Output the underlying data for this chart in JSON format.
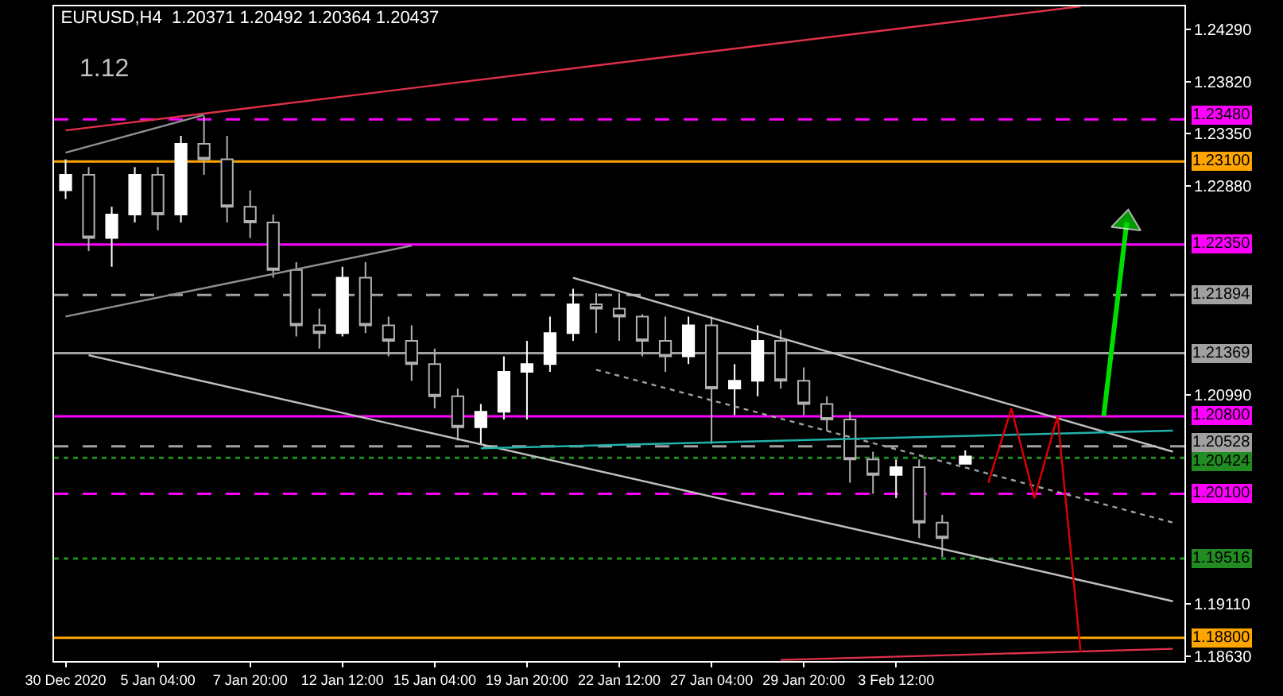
{
  "chart_data": {
    "type": "candlestick",
    "title": "EURUSD,H4  1.20371 1.20492 1.20364 1.20437",
    "annotations": [
      "1.12"
    ],
    "categories": [
      "30 Dec 2020",
      null,
      null,
      null,
      "5 Jan 04:00",
      null,
      null,
      null,
      "7 Jan 20:00",
      null,
      null,
      null,
      "12 Jan 12:00",
      null,
      null,
      null,
      "15 Jan 04:00",
      null,
      null,
      null,
      "19 Jan 20:00",
      null,
      null,
      null,
      "22 Jan 12:00",
      null,
      null,
      null,
      "27 Jan 04:00",
      null,
      null,
      null,
      "29 Jan 20:00",
      null,
      null,
      null,
      "3 Feb 12:00",
      null,
      null,
      null,
      null,
      null,
      null,
      null,
      null,
      null,
      null,
      null,
      null
    ],
    "ohlc": [
      [
        1.2284,
        1.2312,
        1.2276,
        1.2298
      ],
      [
        1.2298,
        1.2305,
        1.2229,
        1.2241
      ],
      [
        1.2241,
        1.2269,
        1.2215,
        1.2262
      ],
      [
        1.2262,
        1.2305,
        1.2255,
        1.2298
      ],
      [
        1.2298,
        1.2305,
        1.2248,
        1.2262
      ],
      [
        1.2262,
        1.2333,
        1.2255,
        1.2326
      ],
      [
        1.2326,
        1.2351,
        1.2298,
        1.2312
      ],
      [
        1.2312,
        1.2333,
        1.2255,
        1.2269
      ],
      [
        1.2269,
        1.2284,
        1.2241,
        1.2255
      ],
      [
        1.2255,
        1.2262,
        1.2205,
        1.2212
      ],
      [
        1.2212,
        1.2219,
        1.2152,
        1.2162
      ],
      [
        1.2162,
        1.2177,
        1.2141,
        1.2155
      ],
      [
        1.2155,
        1.2215,
        1.2152,
        1.2205
      ],
      [
        1.2205,
        1.2219,
        1.2155,
        1.2162
      ],
      [
        1.2162,
        1.217,
        1.2134,
        1.2148
      ],
      [
        1.2148,
        1.2162,
        1.2112,
        1.2127
      ],
      [
        1.2127,
        1.2141,
        1.2087,
        1.2098
      ],
      [
        1.2098,
        1.2105,
        1.2058,
        1.207
      ],
      [
        1.207,
        1.2091,
        1.2055,
        1.2084
      ],
      [
        1.2084,
        1.2134,
        1.2077,
        1.212
      ],
      [
        1.212,
        1.2148,
        1.2077,
        1.2127
      ],
      [
        1.2127,
        1.217,
        1.212,
        1.2155
      ],
      [
        1.2155,
        1.2195,
        1.2148,
        1.2181
      ],
      [
        1.2181,
        1.2191,
        1.2155,
        1.2177
      ],
      [
        1.2177,
        1.2191,
        1.2148,
        1.217
      ],
      [
        1.217,
        1.2172,
        1.2134,
        1.2148
      ],
      [
        1.2148,
        1.217,
        1.212,
        1.2134
      ],
      [
        1.2134,
        1.217,
        1.2127,
        1.2162
      ],
      [
        1.2162,
        1.217,
        1.2055,
        1.2105
      ],
      [
        1.2105,
        1.2127,
        1.2081,
        1.2112
      ],
      [
        1.2112,
        1.2162,
        1.2098,
        1.2148
      ],
      [
        1.2148,
        1.2158,
        1.2105,
        1.2112
      ],
      [
        1.2112,
        1.2124,
        1.2081,
        1.2091
      ],
      [
        1.2091,
        1.2098,
        1.2067,
        1.2077
      ],
      [
        1.2077,
        1.2084,
        1.202,
        1.2041
      ],
      [
        1.2041,
        1.2048,
        1.201,
        1.2027
      ],
      [
        1.2027,
        1.2041,
        1.2006,
        1.2034
      ],
      [
        1.2034,
        1.2041,
        1.197,
        1.1984
      ],
      [
        1.1984,
        1.1991,
        1.1953,
        1.197
      ],
      [
        1.20371,
        1.20492,
        1.20364,
        1.20437
      ],
      null,
      null,
      null,
      null,
      null,
      null,
      null,
      null,
      null
    ],
    "series": [
      {
        "type": "line",
        "color": "#e0304a",
        "values": [
          1.2338,
          null,
          null,
          null,
          null,
          null,
          null,
          null,
          null,
          null,
          null,
          null,
          null,
          null,
          null,
          null,
          null,
          null,
          null,
          null,
          null,
          null,
          null,
          null,
          null,
          null,
          null,
          null,
          null,
          null,
          null,
          null,
          null,
          null,
          null,
          null,
          null,
          null,
          null,
          null,
          null,
          null,
          null,
          null,
          1.245,
          null,
          null,
          null,
          null
        ]
      },
      {
        "type": "line",
        "color": "#e0304a",
        "values": [
          null,
          null,
          null,
          null,
          null,
          null,
          null,
          null,
          null,
          null,
          null,
          null,
          null,
          null,
          null,
          null,
          null,
          null,
          null,
          null,
          null,
          null,
          null,
          null,
          null,
          null,
          null,
          null,
          null,
          null,
          null,
          1.186,
          null,
          null,
          null,
          null,
          null,
          null,
          null,
          null,
          null,
          null,
          null,
          null,
          null,
          null,
          null,
          null,
          1.187
        ]
      },
      {
        "type": "line",
        "color": "#909090",
        "values": [
          1.217,
          null,
          null,
          null,
          null,
          null,
          null,
          null,
          null,
          null,
          null,
          null,
          null,
          null,
          null,
          1.2234,
          null,
          null,
          null,
          null,
          null,
          null,
          null,
          null,
          null,
          null,
          null,
          null,
          null,
          null,
          null,
          null,
          null,
          null,
          null,
          null,
          null,
          null,
          null,
          null,
          null,
          null,
          null,
          null,
          null,
          null,
          null,
          null,
          null
        ]
      },
      {
        "type": "line",
        "color": "#909090",
        "values": [
          1.2318,
          null,
          null,
          null,
          null,
          null,
          1.2352,
          null,
          null,
          null,
          null,
          null,
          null,
          null,
          null,
          null,
          null,
          null,
          null,
          null,
          null,
          null,
          null,
          null,
          null,
          null,
          null,
          null,
          null,
          null,
          null,
          null,
          null,
          null,
          null,
          null,
          null,
          null,
          null,
          null,
          null,
          null,
          null,
          null,
          null,
          null,
          null,
          null,
          null
        ]
      },
      {
        "type": "line",
        "color": "#c0c0c0",
        "values": [
          null,
          null,
          null,
          null,
          null,
          null,
          null,
          null,
          null,
          null,
          null,
          null,
          null,
          null,
          null,
          null,
          null,
          null,
          null,
          null,
          null,
          null,
          1.2205,
          null,
          null,
          null,
          null,
          null,
          null,
          null,
          null,
          null,
          null,
          null,
          null,
          null,
          null,
          null,
          null,
          null,
          null,
          null,
          null,
          null,
          null,
          null,
          null,
          null,
          1.2048
        ]
      },
      {
        "type": "line",
        "color": "#c0c0c0",
        "values": [
          null,
          1.2135,
          null,
          null,
          null,
          null,
          null,
          null,
          null,
          null,
          null,
          null,
          null,
          null,
          null,
          null,
          null,
          null,
          null,
          null,
          null,
          null,
          null,
          null,
          null,
          null,
          null,
          null,
          null,
          null,
          null,
          null,
          null,
          null,
          null,
          null,
          null,
          null,
          null,
          null,
          null,
          null,
          null,
          null,
          null,
          null,
          null,
          null,
          1.1913
        ]
      },
      {
        "type": "line",
        "color": "#a0a0a0",
        "line_style": "dotted",
        "values": [
          null,
          null,
          null,
          null,
          null,
          null,
          null,
          null,
          null,
          null,
          null,
          null,
          null,
          null,
          null,
          null,
          null,
          null,
          null,
          null,
          null,
          null,
          null,
          1.2122,
          null,
          null,
          null,
          null,
          null,
          null,
          null,
          null,
          null,
          null,
          null,
          null,
          null,
          null,
          null,
          null,
          null,
          null,
          null,
          null,
          null,
          null,
          null,
          null,
          1.1984
        ]
      },
      {
        "type": "line",
        "color": "#20b2aa",
        "values": [
          null,
          null,
          null,
          null,
          null,
          null,
          null,
          null,
          null,
          null,
          null,
          null,
          null,
          null,
          null,
          null,
          null,
          null,
          1.2051,
          null,
          null,
          null,
          null,
          null,
          null,
          null,
          null,
          null,
          null,
          null,
          null,
          null,
          null,
          null,
          null,
          null,
          null,
          null,
          null,
          null,
          null,
          null,
          null,
          null,
          null,
          null,
          null,
          null,
          1.2067
        ]
      },
      {
        "type": "line",
        "color": "#00dd00",
        "marker": "triangle",
        "values": [
          null,
          null,
          null,
          null,
          null,
          null,
          null,
          null,
          null,
          null,
          null,
          null,
          null,
          null,
          null,
          null,
          null,
          null,
          null,
          null,
          null,
          null,
          null,
          null,
          null,
          null,
          null,
          null,
          null,
          null,
          null,
          null,
          null,
          null,
          null,
          null,
          null,
          null,
          null,
          null,
          null,
          null,
          null,
          null,
          null,
          1.208,
          1.2255,
          null,
          null
        ]
      },
      {
        "type": "line",
        "color": "#e00000",
        "values": [
          null,
          null,
          null,
          null,
          null,
          null,
          null,
          null,
          null,
          null,
          null,
          null,
          null,
          null,
          null,
          null,
          null,
          null,
          null,
          null,
          null,
          null,
          null,
          null,
          null,
          null,
          null,
          null,
          null,
          null,
          null,
          null,
          null,
          null,
          null,
          null,
          null,
          null,
          null,
          null,
          1.202,
          1.2087,
          1.2006,
          1.208,
          1.1867,
          null,
          null,
          null,
          null
        ]
      }
    ],
    "ref_lines": [
      {
        "axis": "y",
        "value": 1.2348,
        "label": "1.23480",
        "color": "#ff00ff",
        "line_style": "dashed"
      },
      {
        "axis": "y",
        "value": 1.231,
        "label": "1.23100",
        "color": "#ffa500",
        "line_style": "solid"
      },
      {
        "axis": "y",
        "value": 1.2235,
        "label": "1.22350",
        "color": "#ff00ff",
        "line_style": "solid"
      },
      {
        "axis": "y",
        "value": 1.21894,
        "label": "1.21894",
        "color": "#a0a0a0",
        "line_style": "dashed"
      },
      {
        "axis": "y",
        "value": 1.21369,
        "label": "1.21369",
        "color": "#a0a0a0",
        "line_style": "solid"
      },
      {
        "axis": "y",
        "value": 1.208,
        "label": "1.20800",
        "color": "#ff00ff",
        "line_style": "solid"
      },
      {
        "axis": "y",
        "value": 1.20528,
        "label": "1.20528",
        "color": "#a0a0a0",
        "line_style": "dashed"
      },
      {
        "axis": "y",
        "value": 1.20424,
        "label": "1.20424",
        "color": "#228b22",
        "line_style": "dotted"
      },
      {
        "axis": "y",
        "value": 1.201,
        "label": "1.20100",
        "color": "#ff00ff",
        "line_style": "dashed"
      },
      {
        "axis": "y",
        "value": 1.19516,
        "label": "1.19516",
        "color": "#228b22",
        "line_style": "dotted"
      },
      {
        "axis": "y",
        "value": 1.188,
        "label": "1.18800",
        "color": "#ffa500",
        "line_style": "solid"
      }
    ],
    "ylim": [
      1.1859,
      1.245
    ],
    "yticks": [
      {
        "value": 1.2429,
        "label": "1.24290"
      },
      {
        "value": 1.2382,
        "label": "1.23820"
      },
      {
        "value": 1.2335,
        "label": "1.23350"
      },
      {
        "value": 1.2288,
        "label": "1.22880"
      },
      {
        "value": 1.2099,
        "label": "1.20990"
      },
      {
        "value": 1.1911,
        "label": "1.19110"
      },
      {
        "value": 1.1863,
        "label": "1.18630"
      }
    ],
    "grid": false
  }
}
